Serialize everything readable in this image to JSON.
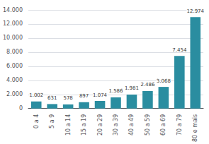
{
  "chart_data": {
    "type": "bar",
    "categories": [
      "0 a 4",
      "5 a 9",
      "10 a 14",
      "15 a 19",
      "20 a 29",
      "30 a 39",
      "40 a 49",
      "50 a 59",
      "60 a 69",
      "70 a 79",
      "80 e mais"
    ],
    "values": [
      1002,
      631,
      578,
      897,
      1074,
      1586,
      1981,
      2486,
      3068,
      7454,
      12974
    ],
    "value_labels": [
      "1.002",
      "631",
      "578",
      "897",
      "1.074",
      "1.586",
      "1.981",
      "2.486",
      "3.068",
      "7.454",
      "12.974"
    ],
    "data_labels": true,
    "color": "#2a8da0",
    "ylim": [
      0,
      14000
    ],
    "yticks": [
      0,
      {
        "value": 2000,
        "label": "2.000"
      },
      {
        "value": 4000,
        "label": "4.000"
      },
      {
        "value": 6000,
        "label": "6.000"
      },
      {
        "value": 8000,
        "label": "8.000"
      },
      {
        "value": 10000,
        "label": "10.000"
      },
      {
        "value": 12000,
        "label": "12.000"
      },
      {
        "value": 14000,
        "label": "14.000"
      }
    ],
    "grid": true
  }
}
